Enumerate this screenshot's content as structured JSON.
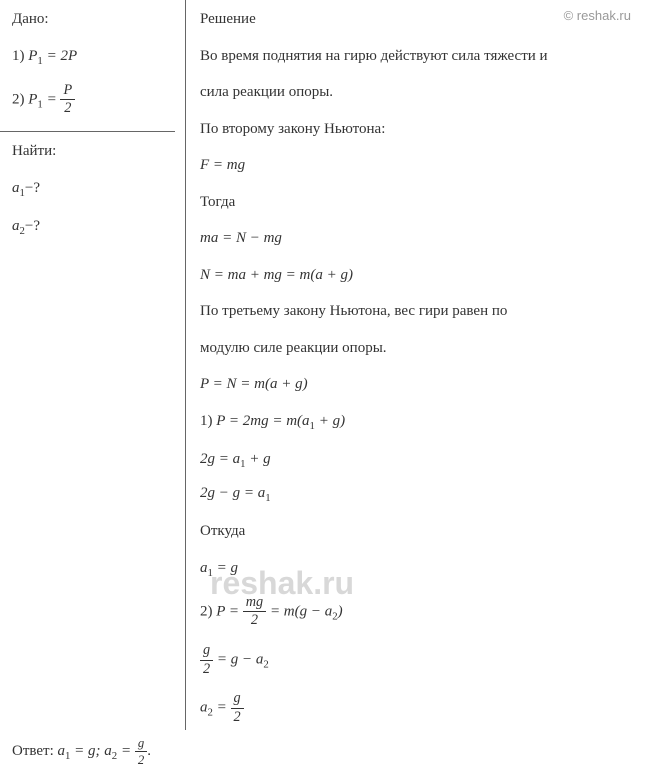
{
  "watermark": {
    "top": "© reshak.ru",
    "center": "reshak.ru"
  },
  "given": {
    "title": "Дано:",
    "item1_prefix": "1) ",
    "item1_lhs": "P",
    "item1_sub": "1",
    "item1_eq": " = 2P",
    "item2_prefix": "2) ",
    "item2_lhs": "P",
    "item2_sub": "1",
    "item2_eq": " = ",
    "item2_frac_num": "P",
    "item2_frac_den": "2"
  },
  "find": {
    "title": "Найти:",
    "a1_var": "a",
    "a1_sub": "1",
    "a1_q": "−?",
    "a2_var": "a",
    "a2_sub": "2",
    "a2_q": "−?"
  },
  "solution": {
    "title": "Решение",
    "text1": "Во время поднятия на гирю действуют сила тяжести и",
    "text2": "сила реакции опоры.",
    "text3": "По второму закону Ньютона:",
    "eq1": "F = mg",
    "text4": "Тогда",
    "eq2": "ma = N − mg",
    "eq3": "N = ma + mg = m(a + g)",
    "text5": "По третьему закону Ньютона, вес гири равен по",
    "text6": "модулю силе реакции опоры.",
    "eq4": "P = N = m(a + g)",
    "case1_prefix": "1) ",
    "case1_eq": "P = 2mg = m(a",
    "case1_sub": "1",
    "case1_tail": " + g)",
    "eq5_a": "2g = a",
    "eq5_sub": "1",
    "eq5_b": " + g",
    "eq6_a": "2g − g = a",
    "eq6_sub": "1",
    "text7": "Откуда",
    "eq7_a": "a",
    "eq7_sub": "1",
    "eq7_b": " = g",
    "case2_prefix": "2) ",
    "case2_lhs": "P = ",
    "case2_num": "mg",
    "case2_den": "2",
    "case2_mid": " = m(g − a",
    "case2_sub": "2",
    "case2_tail": ")",
    "eq8_num": "g",
    "eq8_den": "2",
    "eq8_mid": " = g − a",
    "eq8_sub": "2",
    "eq9_a": "a",
    "eq9_sub": "2",
    "eq9_eq": " = ",
    "eq9_num": "g",
    "eq9_den": "2"
  },
  "answer": {
    "label": "Ответ: ",
    "a1_var": "a",
    "a1_sub": "1",
    "a1_eq": " = g; ",
    "a2_var": "a",
    "a2_sub": "2",
    "a2_eq": " = ",
    "a2_num": "g",
    "a2_den": "2",
    "tail": "."
  }
}
